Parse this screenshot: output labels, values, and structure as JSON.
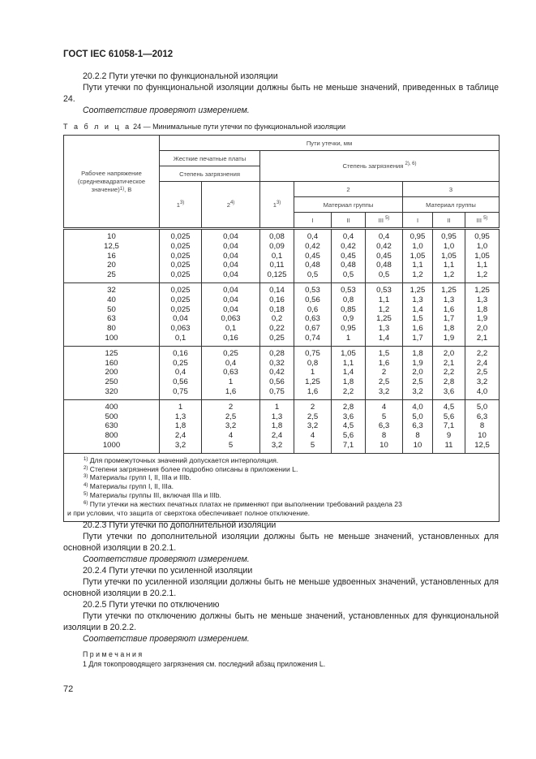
{
  "header": {
    "doc_id": "ГОСТ IEC 61058-1—2012"
  },
  "section_2022": {
    "title": "20.2.2 Пути утечки по функциональной изоляции",
    "text": "Пути утечки по функциональной изоляции должны быть не меньше значений, приведенных в таблице 24.",
    "compliance": "Соответствие проверяют измерением."
  },
  "table": {
    "caption_prefix": "Т а б л и ц а",
    "caption": "24 — Минимальные пути утечки по функциональной изоляции",
    "col_voltage": "Рабочее напряжение (среднеквадратическое значение)",
    "col_voltage_sup": "1)",
    "col_voltage_unit": ", В",
    "creepage": "Пути утечки, мм",
    "rigid_pcb": "Жесткие печатные платы",
    "pollution_degree": "Степень загрязнения",
    "pollution_degree_right": "Степень загрязнения",
    "pollution_degree_right_sup": "2), 6)",
    "pd1_a": "1",
    "pd1_a_sup": "3)",
    "pd2_a": "2",
    "pd2_a_sup": "4)",
    "pd1_b": "1",
    "pd1_b_sup": "3)",
    "pd2": "2",
    "pd3": "3",
    "material_group": "Материал группы",
    "groups": [
      "I",
      "II",
      "III",
      "I",
      "II",
      "III"
    ],
    "group_sup": "5)",
    "row_groups": [
      [
        [
          "10",
          "0,025",
          "0,04",
          "0,08",
          "0,4",
          "0,4",
          "0,4",
          "0,95",
          "0,95",
          "0,95"
        ],
        [
          "12,5",
          "0,025",
          "0,04",
          "0,09",
          "0,42",
          "0,42",
          "0,42",
          "1,0",
          "1,0",
          "1,0"
        ],
        [
          "16",
          "0,025",
          "0,04",
          "0,1",
          "0,45",
          "0,45",
          "0,45",
          "1,05",
          "1,05",
          "1,05"
        ],
        [
          "20",
          "0,025",
          "0,04",
          "0,11",
          "0,48",
          "0,48",
          "0,48",
          "1,1",
          "1,1",
          "1,1"
        ],
        [
          "25",
          "0,025",
          "0,04",
          "0,125",
          "0,5",
          "0,5",
          "0,5",
          "1,2",
          "1,2",
          "1,2"
        ]
      ],
      [
        [
          "32",
          "0,025",
          "0,04",
          "0,14",
          "0,53",
          "0,53",
          "0,53",
          "1,25",
          "1,25",
          "1,25"
        ],
        [
          "40",
          "0,025",
          "0,04",
          "0,16",
          "0,56",
          "0,8",
          "1,1",
          "1,3",
          "1,3",
          "1,3"
        ],
        [
          "50",
          "0,025",
          "0,04",
          "0,18",
          "0,6",
          "0,85",
          "1,2",
          "1,4",
          "1,6",
          "1,8"
        ],
        [
          "63",
          "0,04",
          "0,063",
          "0,2",
          "0,63",
          "0,9",
          "1,25",
          "1,5",
          "1,7",
          "1,9"
        ],
        [
          "80",
          "0,063",
          "0,1",
          "0,22",
          "0,67",
          "0,95",
          "1,3",
          "1,6",
          "1,8",
          "2,0"
        ],
        [
          "100",
          "0,1",
          "0,16",
          "0,25",
          "0,74",
          "1",
          "1,4",
          "1,7",
          "1,9",
          "2,1"
        ]
      ],
      [
        [
          "125",
          "0,16",
          "0,25",
          "0,28",
          "0,75",
          "1,05",
          "1,5",
          "1,8",
          "2,0",
          "2,2"
        ],
        [
          "160",
          "0,25",
          "0,4",
          "0,32",
          "0,8",
          "1,1",
          "1,6",
          "1,9",
          "2,1",
          "2,4"
        ],
        [
          "200",
          "0,4",
          "0,63",
          "0,42",
          "1",
          "1,4",
          "2",
          "2,0",
          "2,2",
          "2,5"
        ],
        [
          "250",
          "0,56",
          "1",
          "0,56",
          "1,25",
          "1,8",
          "2,5",
          "2,5",
          "2,8",
          "3,2"
        ],
        [
          "320",
          "0,75",
          "1,6",
          "0,75",
          "1,6",
          "2,2",
          "3,2",
          "3,2",
          "3,6",
          "4,0"
        ]
      ],
      [
        [
          "400",
          "1",
          "2",
          "1",
          "2",
          "2,8",
          "4",
          "4,0",
          "4,5",
          "5,0"
        ],
        [
          "500",
          "1,3",
          "2,5",
          "1,3",
          "2,5",
          "3,6",
          "5",
          "5,0",
          "5,6",
          "6,3"
        ],
        [
          "630",
          "1,8",
          "3,2",
          "1,8",
          "3,2",
          "4,5",
          "6,3",
          "6,3",
          "7,1",
          "8"
        ],
        [
          "800",
          "2,4",
          "4",
          "2,4",
          "4",
          "5,6",
          "8",
          "8",
          "9",
          "10"
        ],
        [
          "1000",
          "3,2",
          "5",
          "3,2",
          "5",
          "7,1",
          "10",
          "10",
          "11",
          "12,5"
        ]
      ]
    ],
    "footnotes": [
      {
        "sup": "1)",
        "text": "Для промежуточных значений допускается интерполяция."
      },
      {
        "sup": "2)",
        "text": "Степени загрязнения более подробно описаны в приложении L."
      },
      {
        "sup": "3)",
        "text": "Материалы групп I, II, IIIa и IIIb."
      },
      {
        "sup": "4)",
        "text": "Материалы групп I, II, IIIa."
      },
      {
        "sup": "5)",
        "text": "Материалы группы III, включая IIIa и IIIb."
      },
      {
        "sup": "6)",
        "text": "Пути утечки на жестких печатных платах не применяют при выполнении требований раздела 23"
      }
    ],
    "footnote_6_cont": "и при условии, что защита от сверхтока обеспечивает полное отключение."
  },
  "section_2023": {
    "title": "20.2.3 Пути утечки по дополнительной изоляции",
    "text": "Пути утечки по дополнительной изоляции должны быть не меньше значений, установленных для основной изоляции в 20.2.1.",
    "compliance": "Соответствие проверяют измерением."
  },
  "section_2024": {
    "title": "20.2.4 Пути утечки по усиленной изоляции",
    "text": "Пути утечки по усиленной изоляции должны быть не меньше удвоенных значений, установленных для основной изоляции в 20.2.1."
  },
  "section_2025": {
    "title": "20.2.5 Пути утечки по отключению",
    "text": "Пути утечки по отключению должны быть не меньше значений, установленных для функциональной изоляции в 20.2.2.",
    "compliance": "Соответствие проверяют измерением."
  },
  "notes": {
    "heading": "П р и м е ч а н и я",
    "items": [
      "1 Для токопроводящего загрязнения см. последний абзац приложения L."
    ]
  },
  "page_number": "72"
}
